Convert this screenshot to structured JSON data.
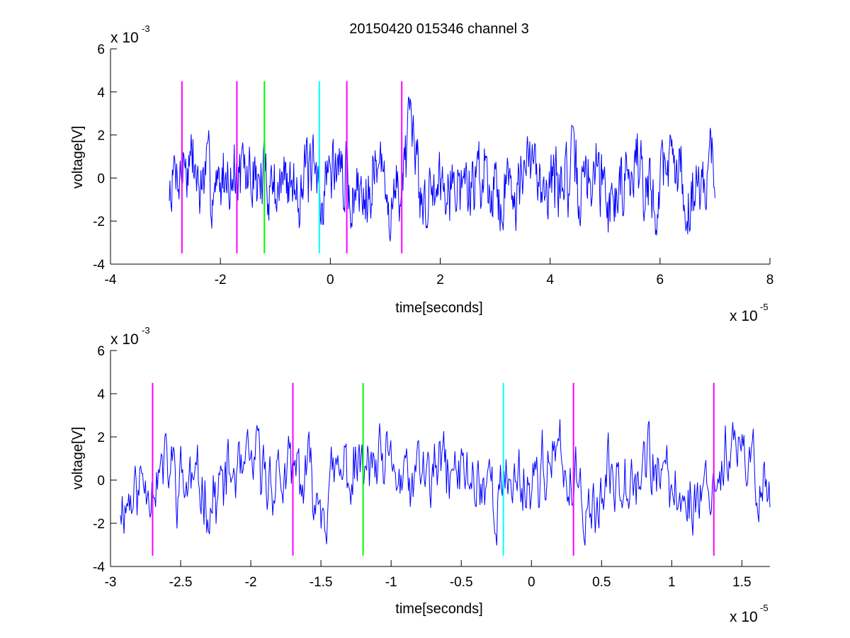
{
  "window": {
    "title": "20150420 015346 channel 3"
  },
  "colors": {
    "signal": "#0000ff",
    "marker_magenta": "#ff00ff",
    "marker_green": "#00ff00",
    "marker_cyan": "#00ffff",
    "axis": "#000000",
    "background": "#ffffff"
  },
  "chart_data": [
    {
      "type": "line",
      "title": "20150420 015346 channel 3",
      "xlabel": "time[seconds]",
      "ylabel": "voltage[V]",
      "x_multiplier_base": "x 10",
      "x_multiplier_exp": "-5",
      "y_multiplier_base": "x 10",
      "y_multiplier_exp": "-3",
      "xlim": [
        -4,
        8
      ],
      "ylim": [
        -4,
        6
      ],
      "xticks": [
        -4,
        -2,
        0,
        2,
        4,
        6,
        8
      ],
      "xtick_labels": [
        "-4",
        "-2",
        "0",
        "2",
        "4",
        "6",
        "8"
      ],
      "yticks": [
        -4,
        -2,
        0,
        2,
        4,
        6
      ],
      "ytick_labels": [
        "-4",
        "-2",
        "0",
        "2",
        "4",
        "6"
      ],
      "grid": false,
      "signal": {
        "x_start": -2.93,
        "x_end": 7.0,
        "samples": 900,
        "seed": 7
      },
      "markers": [
        {
          "x": -2.7,
          "color": "magenta",
          "ymin": -3.5,
          "ymax": 4.5
        },
        {
          "x": -1.7,
          "color": "magenta",
          "ymin": -3.5,
          "ymax": 4.5
        },
        {
          "x": -1.2,
          "color": "green",
          "ymin": -3.5,
          "ymax": 4.5
        },
        {
          "x": -0.2,
          "color": "cyan",
          "ymin": -3.5,
          "ymax": 4.5
        },
        {
          "x": 0.3,
          "color": "magenta",
          "ymin": -3.5,
          "ymax": 4.5
        },
        {
          "x": 1.3,
          "color": "magenta",
          "ymin": -3.5,
          "ymax": 4.5
        }
      ]
    },
    {
      "type": "line",
      "title": "",
      "xlabel": "time[seconds]",
      "ylabel": "voltage[V]",
      "x_multiplier_base": "x 10",
      "x_multiplier_exp": "-5",
      "y_multiplier_base": "x 10",
      "y_multiplier_exp": "-3",
      "xlim": [
        -3.0,
        1.7
      ],
      "ylim": [
        -4,
        6
      ],
      "xticks": [
        -3,
        -2.5,
        -2,
        -1.5,
        -1,
        -0.5,
        0,
        0.5,
        1,
        1.5
      ],
      "xtick_labels": [
        "-3",
        "-2.5",
        "-2",
        "-1.5",
        "-1",
        "-0.5",
        "0",
        "0.5",
        "1",
        "1.5"
      ],
      "yticks": [
        -4,
        -2,
        0,
        2,
        4,
        6
      ],
      "ytick_labels": [
        "-4",
        "-2",
        "0",
        "2",
        "4",
        "6"
      ],
      "grid": false,
      "signal": {
        "x_start": -2.93,
        "x_end": 1.7,
        "samples": 700,
        "seed": 11
      },
      "markers": [
        {
          "x": -2.7,
          "color": "magenta",
          "ymin": -3.5,
          "ymax": 4.5
        },
        {
          "x": -1.7,
          "color": "magenta",
          "ymin": -3.5,
          "ymax": 4.5
        },
        {
          "x": -1.2,
          "color": "green",
          "ymin": -3.5,
          "ymax": 4.5
        },
        {
          "x": -0.2,
          "color": "cyan",
          "ymin": -3.5,
          "ymax": 4.5
        },
        {
          "x": 0.3,
          "color": "magenta",
          "ymin": -3.5,
          "ymax": 4.5
        },
        {
          "x": 1.3,
          "color": "magenta",
          "ymin": -3.5,
          "ymax": 4.5
        }
      ]
    }
  ]
}
